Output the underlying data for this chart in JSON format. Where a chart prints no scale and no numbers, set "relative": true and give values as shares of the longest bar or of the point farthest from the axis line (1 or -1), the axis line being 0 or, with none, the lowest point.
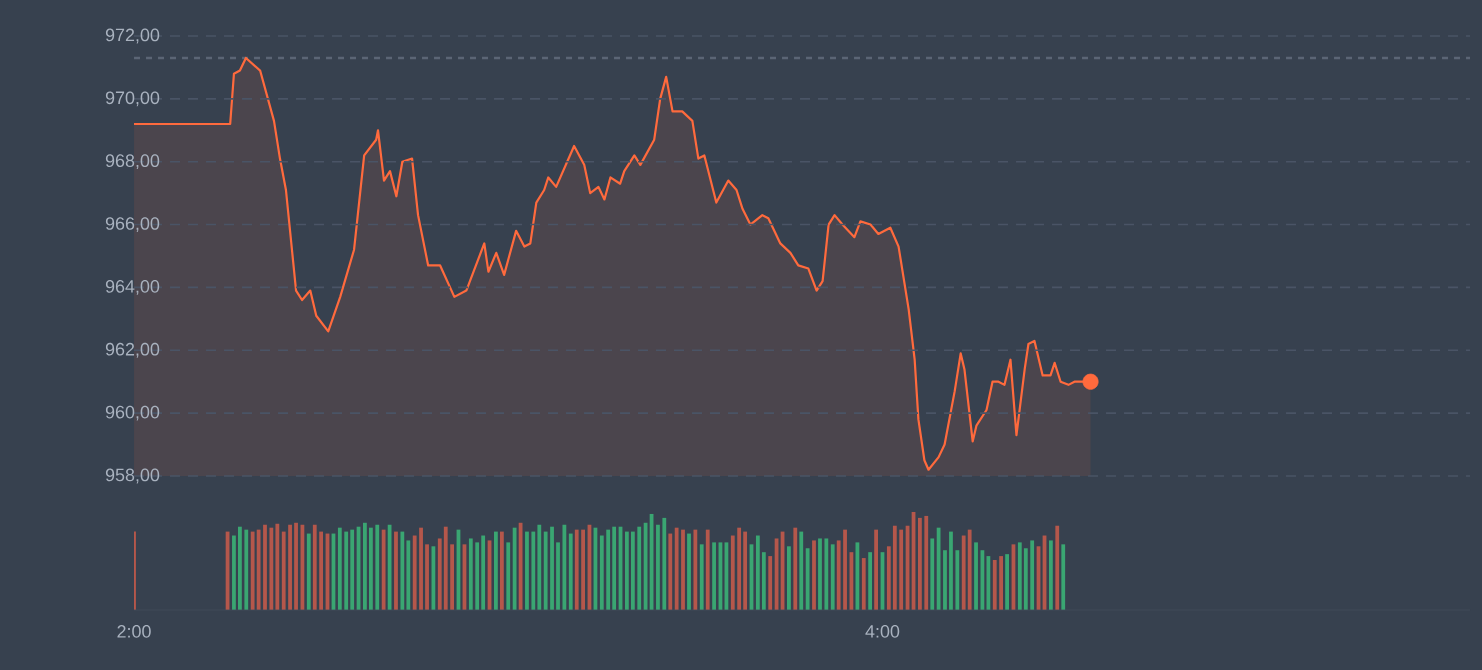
{
  "chart_data": [
    {
      "type": "area",
      "xlim": [
        2,
        5.57
      ],
      "ylim": [
        958,
        972
      ],
      "tick_labels": "y",
      "grid": "y",
      "yticks": [
        {
          "value": 958,
          "label": "958,00"
        },
        {
          "value": 960,
          "label": "960,00"
        },
        {
          "value": 962,
          "label": "962,00"
        },
        {
          "value": 964,
          "label": "964,00"
        },
        {
          "value": 966,
          "label": "966,00"
        },
        {
          "value": 968,
          "label": "968,00"
        },
        {
          "value": 970,
          "label": "970,00"
        },
        {
          "value": 972,
          "label": "972,00"
        }
      ],
      "ref_lines": [
        {
          "axis": "y",
          "value": 971.3,
          "color": "#5b6575",
          "line_style": "dotted"
        }
      ],
      "series": [
        {
          "color": "#ff6a3d",
          "x": [
            2.0,
            2.257,
            2.267,
            2.283,
            2.299,
            2.337,
            2.374,
            2.39,
            2.406,
            2.433,
            2.449,
            2.471,
            2.487,
            2.519,
            2.551,
            2.588,
            2.615,
            2.647,
            2.652,
            2.668,
            2.684,
            2.701,
            2.717,
            2.743,
            2.759,
            2.786,
            2.818,
            2.856,
            2.888,
            2.936,
            2.947,
            2.968,
            2.989,
            3.021,
            3.043,
            3.059,
            3.075,
            3.096,
            3.107,
            3.128,
            3.176,
            3.203,
            3.219,
            3.241,
            3.257,
            3.273,
            3.299,
            3.31,
            3.337,
            3.353,
            3.39,
            3.406,
            3.422,
            3.439,
            3.465,
            3.492,
            3.508,
            3.524,
            3.556,
            3.588,
            3.61,
            3.626,
            3.647,
            3.679,
            3.695,
            3.727,
            3.754,
            3.775,
            3.802,
            3.824,
            3.84,
            3.856,
            3.872,
            3.893,
            3.925,
            3.941,
            3.968,
            3.989,
            4.021,
            4.043,
            4.07,
            4.086,
            4.096,
            4.112,
            4.123,
            4.15,
            4.166,
            4.193,
            4.209,
            4.219,
            4.241,
            4.251,
            4.278,
            4.294,
            4.31,
            4.326,
            4.342,
            4.358,
            4.38,
            4.39,
            4.406,
            4.428,
            4.449,
            4.46,
            4.476,
            4.497,
            4.513,
            4.556
          ],
          "values": [
            969.2,
            969.2,
            970.8,
            970.9,
            971.3,
            970.9,
            969.3,
            968.1,
            967.1,
            963.9,
            963.6,
            963.9,
            963.1,
            962.6,
            963.7,
            965.2,
            968.2,
            968.7,
            969.0,
            967.4,
            967.7,
            966.9,
            968.0,
            968.1,
            966.3,
            964.7,
            964.7,
            963.7,
            963.9,
            965.4,
            964.5,
            965.1,
            964.4,
            965.8,
            965.3,
            965.4,
            966.7,
            967.1,
            967.5,
            967.2,
            968.5,
            967.9,
            967.0,
            967.2,
            966.8,
            967.5,
            967.3,
            967.7,
            968.2,
            967.9,
            968.7,
            970.0,
            970.7,
            969.6,
            969.6,
            969.3,
            968.1,
            968.2,
            966.7,
            967.4,
            967.1,
            966.5,
            966.0,
            966.3,
            966.2,
            965.4,
            965.1,
            964.7,
            964.6,
            963.9,
            964.2,
            966.0,
            966.3,
            966.0,
            965.6,
            966.1,
            966.0,
            965.7,
            965.9,
            965.3,
            963.3,
            961.7,
            959.8,
            958.5,
            958.2,
            958.6,
            959.0,
            960.7,
            961.9,
            961.4,
            959.1,
            959.6,
            960.1,
            961.0,
            961.0,
            960.9,
            961.7,
            959.3,
            961.4,
            962.2,
            962.3,
            961.2,
            961.2,
            961.6,
            961.0,
            960.9,
            961.0,
            961.0
          ]
        },
        {
          "type": "scatter",
          "marker": "circle",
          "color": "#ff6a3d",
          "x": [
            4.556
          ],
          "values": [
            961.0
          ]
        }
      ]
    },
    {
      "type": "bar",
      "relative": true,
      "xlim": [
        2,
        5.57
      ],
      "tick_labels": "x",
      "xticks": [
        {
          "value": 2,
          "label": "2:00"
        },
        {
          "value": 4,
          "label": "4:00"
        }
      ],
      "x": [
        2.0,
        2.25,
        2.267,
        2.283,
        2.3,
        2.317,
        2.333,
        2.35,
        2.367,
        2.383,
        2.4,
        2.417,
        2.433,
        2.45,
        2.467,
        2.483,
        2.5,
        2.517,
        2.533,
        2.55,
        2.567,
        2.583,
        2.6,
        2.617,
        2.633,
        2.65,
        2.667,
        2.683,
        2.7,
        2.717,
        2.733,
        2.75,
        2.767,
        2.783,
        2.8,
        2.817,
        2.833,
        2.85,
        2.867,
        2.883,
        2.9,
        2.917,
        2.933,
        2.95,
        2.967,
        2.983,
        3.0,
        3.017,
        3.033,
        3.05,
        3.067,
        3.083,
        3.1,
        3.117,
        3.133,
        3.15,
        3.167,
        3.183,
        3.2,
        3.217,
        3.233,
        3.25,
        3.267,
        3.283,
        3.3,
        3.317,
        3.333,
        3.35,
        3.367,
        3.383,
        3.4,
        3.417,
        3.433,
        3.45,
        3.467,
        3.483,
        3.5,
        3.517,
        3.533,
        3.55,
        3.567,
        3.583,
        3.6,
        3.617,
        3.633,
        3.65,
        3.667,
        3.683,
        3.7,
        3.717,
        3.733,
        3.75,
        3.767,
        3.783,
        3.8,
        3.817,
        3.833,
        3.85,
        3.867,
        3.883,
        3.9,
        3.917,
        3.933,
        3.95,
        3.967,
        3.983,
        4.0,
        4.017,
        4.033,
        4.05,
        4.067,
        4.083,
        4.1,
        4.117,
        4.133,
        4.15,
        4.167,
        4.183,
        4.2,
        4.217,
        4.233,
        4.25,
        4.267,
        4.283,
        4.3,
        4.317,
        4.333,
        4.35,
        4.367,
        4.383,
        4.4,
        4.417,
        4.433,
        4.45,
        4.467,
        4.483
      ],
      "values": [
        0.8,
        0.8,
        0.76,
        0.85,
        0.82,
        0.8,
        0.82,
        0.87,
        0.84,
        0.88,
        0.8,
        0.87,
        0.89,
        0.87,
        0.78,
        0.87,
        0.8,
        0.78,
        0.78,
        0.84,
        0.8,
        0.82,
        0.85,
        0.89,
        0.84,
        0.87,
        0.82,
        0.87,
        0.8,
        0.8,
        0.71,
        0.76,
        0.84,
        0.67,
        0.65,
        0.73,
        0.85,
        0.67,
        0.82,
        0.67,
        0.73,
        0.69,
        0.76,
        0.71,
        0.8,
        0.8,
        0.69,
        0.84,
        0.89,
        0.8,
        0.8,
        0.87,
        0.8,
        0.85,
        0.69,
        0.87,
        0.78,
        0.82,
        0.82,
        0.87,
        0.84,
        0.76,
        0.82,
        0.85,
        0.85,
        0.8,
        0.8,
        0.85,
        0.89,
        0.98,
        0.87,
        0.94,
        0.78,
        0.84,
        0.82,
        0.78,
        0.82,
        0.67,
        0.82,
        0.69,
        0.69,
        0.69,
        0.76,
        0.84,
        0.8,
        0.67,
        0.76,
        0.59,
        0.55,
        0.73,
        0.8,
        0.65,
        0.84,
        0.8,
        0.63,
        0.71,
        0.73,
        0.73,
        0.67,
        0.71,
        0.82,
        0.59,
        0.69,
        0.53,
        0.59,
        0.82,
        0.59,
        0.65,
        0.86,
        0.82,
        0.86,
        1,
        0.94,
        0.96,
        0.73,
        0.84,
        0.61,
        0.8,
        0.61,
        0.76,
        0.82,
        0.69,
        0.61,
        0.55,
        0.51,
        0.55,
        0.57,
        0.67,
        0.69,
        0.63,
        0.71,
        0.65,
        0.76,
        0.71,
        0.86,
        0.67
      ],
      "colors": [
        "#b5574b",
        "#b5574b",
        "#3aa672",
        "#3aa672",
        "#3aa672",
        "#b5574b",
        "#b5574b",
        "#b5574b",
        "#b5574b",
        "#b5574b",
        "#b5574b",
        "#b5574b",
        "#b5574b",
        "#b5574b",
        "#3aa672",
        "#b5574b",
        "#b5574b",
        "#b5574b",
        "#3aa672",
        "#3aa672",
        "#3aa672",
        "#3aa672",
        "#3aa672",
        "#3aa672",
        "#3aa672",
        "#3aa672",
        "#b5574b",
        "#3aa672",
        "#b5574b",
        "#3aa672",
        "#3aa672",
        "#b5574b",
        "#b5574b",
        "#b5574b",
        "#3aa672",
        "#b5574b",
        "#b5574b",
        "#b5574b",
        "#3aa672",
        "#b5574b",
        "#3aa672",
        "#3aa672",
        "#3aa672",
        "#b5574b",
        "#3aa672",
        "#b5574b",
        "#3aa672",
        "#3aa672",
        "#b5574b",
        "#3aa672",
        "#3aa672",
        "#3aa672",
        "#3aa672",
        "#3aa672",
        "#3aa672",
        "#3aa672",
        "#3aa672",
        "#b5574b",
        "#b5574b",
        "#b5574b",
        "#3aa672",
        "#3aa672",
        "#3aa672",
        "#3aa672",
        "#3aa672",
        "#3aa672",
        "#3aa672",
        "#3aa672",
        "#3aa672",
        "#3aa672",
        "#3aa672",
        "#3aa672",
        "#b5574b",
        "#b5574b",
        "#b5574b",
        "#3aa672",
        "#b5574b",
        "#3aa672",
        "#b5574b",
        "#3aa672",
        "#3aa672",
        "#3aa672",
        "#b5574b",
        "#b5574b",
        "#b5574b",
        "#3aa672",
        "#3aa672",
        "#3aa672",
        "#b5574b",
        "#b5574b",
        "#b5574b",
        "#3aa672",
        "#b5574b",
        "#3aa672",
        "#3aa672",
        "#b5574b",
        "#3aa672",
        "#3aa672",
        "#3aa672",
        "#b5574b",
        "#b5574b",
        "#b5574b",
        "#3aa672",
        "#b5574b",
        "#3aa672",
        "#b5574b",
        "#3aa672",
        "#b5574b",
        "#b5574b",
        "#b5574b",
        "#b5574b",
        "#b5574b",
        "#b5574b",
        "#b5574b",
        "#3aa672",
        "#3aa672",
        "#3aa672",
        "#3aa672",
        "#3aa672",
        "#b5574b",
        "#b5574b",
        "#3aa672",
        "#3aa672",
        "#3aa672",
        "#b5574b",
        "#b5574b",
        "#3aa672",
        "#b5574b",
        "#3aa672",
        "#3aa672",
        "#3aa672",
        "#b5574b",
        "#b5574b",
        "#3aa672",
        "#b5574b",
        "#3aa672"
      ]
    }
  ]
}
